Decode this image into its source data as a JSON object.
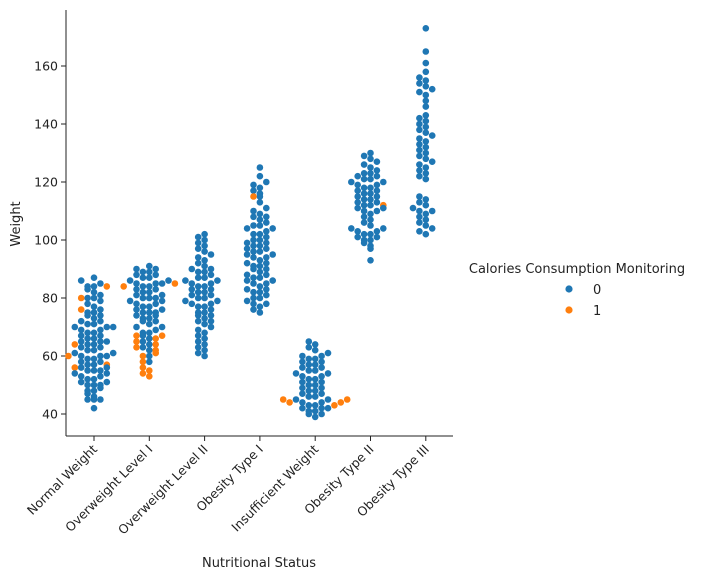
{
  "chart_data": {
    "type": "scatter",
    "subtype": "swarm",
    "xlabel": "Nutritional Status",
    "ylabel": "Weight",
    "categories": [
      "Normal Weight",
      "Overweight Level I",
      "Overweight Level II",
      "Obesity Type I",
      "Insufficient Weight",
      "Obesity Type II",
      "Obesity Type III"
    ],
    "ylim": [
      32,
      180
    ],
    "yticks": [
      40,
      60,
      80,
      100,
      120,
      140,
      160
    ],
    "grid": false,
    "legend": {
      "title": "Calories Consumption Monitoring",
      "placement": "right",
      "entries": [
        {
          "label": "0",
          "color": "#1f77b4"
        },
        {
          "label": "1",
          "color": "#ff7f0e"
        }
      ]
    },
    "series": [
      {
        "hue": "0",
        "color": "#1f77b4",
        "groups": [
          {
            "category": "Normal Weight",
            "y": [
              42,
              45,
              45,
              45,
              46,
              47,
              48,
              48,
              49,
              50,
              50,
              50,
              51,
              51,
              52,
              52,
              53,
              53,
              54,
              54,
              55,
              55,
              55,
              56,
              56,
              57,
              57,
              58,
              58,
              59,
              59,
              60,
              60,
              60,
              61,
              61,
              62,
              62,
              63,
              63,
              64,
              64,
              65,
              65,
              65,
              66,
              66,
              67,
              67,
              68,
              68,
              69,
              69,
              70,
              70,
              70,
              71,
              71,
              72,
              72,
              73,
              74,
              74,
              75,
              75,
              76,
              77,
              78,
              79,
              80,
              80,
              81,
              82,
              83,
              84,
              84,
              85,
              86,
              87
            ]
          },
          {
            "category": "Overweight Level I",
            "y": [
              58,
              60,
              62,
              63,
              64,
              65,
              66,
              67,
              68,
              68,
              69,
              70,
              70,
              71,
              72,
              72,
              73,
              73,
              74,
              74,
              75,
              75,
              75,
              76,
              76,
              77,
              77,
              78,
              78,
              79,
              79,
              80,
              80,
              80,
              81,
              81,
              82,
              82,
              83,
              83,
              84,
              84,
              85,
              85,
              85,
              86,
              86,
              87,
              87,
              88,
              88,
              89,
              89,
              90,
              90,
              91
            ]
          },
          {
            "category": "Overweight Level II",
            "y": [
              60,
              61,
              62,
              63,
              64,
              65,
              66,
              67,
              68,
              69,
              70,
              71,
              72,
              72,
              73,
              74,
              74,
              75,
              75,
              76,
              77,
              77,
              78,
              78,
              79,
              79,
              80,
              80,
              81,
              81,
              82,
              82,
              83,
              83,
              84,
              84,
              85,
              85,
              86,
              86,
              87,
              87,
              88,
              89,
              89,
              90,
              90,
              91,
              92,
              93,
              94,
              95,
              96,
              97,
              98,
              99,
              100,
              101,
              102
            ]
          },
          {
            "category": "Obesity Type I",
            "y": [
              75,
              76,
              77,
              78,
              78,
              79,
              80,
              80,
              81,
              82,
              82,
              83,
              83,
              84,
              85,
              85,
              86,
              86,
              87,
              87,
              88,
              88,
              89,
              90,
              90,
              91,
              91,
              92,
              92,
              93,
              94,
              94,
              95,
              95,
              96,
              96,
              97,
              97,
              98,
              98,
              99,
              99,
              100,
              100,
              101,
              102,
              102,
              103,
              104,
              104,
              105,
              105,
              106,
              107,
              108,
              108,
              109,
              110,
              111,
              113,
              115,
              116,
              117,
              118,
              119,
              120,
              122,
              125
            ]
          },
          {
            "category": "Insufficient Weight",
            "y": [
              39,
              40,
              40,
              41,
              41,
              42,
              42,
              42,
              43,
              43,
              44,
              44,
              45,
              45,
              46,
              46,
              47,
              47,
              48,
              48,
              49,
              49,
              50,
              50,
              51,
              51,
              52,
              52,
              53,
              53,
              54,
              54,
              55,
              55,
              56,
              56,
              57,
              57,
              58,
              58,
              59,
              59,
              60,
              60,
              61,
              62,
              63,
              64,
              65
            ]
          },
          {
            "category": "Obesity Type II",
            "y": [
              93,
              97,
              98,
              99,
              100,
              100,
              101,
              101,
              102,
              102,
              103,
              103,
              104,
              104,
              105,
              106,
              107,
              108,
              109,
              110,
              110,
              111,
              111,
              112,
              112,
              113,
              113,
              114,
              114,
              115,
              115,
              116,
              116,
              117,
              117,
              118,
              118,
              119,
              119,
              120,
              120,
              121,
              121,
              122,
              122,
              123,
              123,
              124,
              125,
              126,
              127,
              128,
              129,
              130
            ]
          },
          {
            "category": "Obesity Type III",
            "y": [
              102,
              103,
              104,
              105,
              106,
              107,
              108,
              109,
              110,
              110,
              111,
              112,
              113,
              114,
              115,
              121,
              122,
              123,
              124,
              125,
              126,
              127,
              128,
              129,
              130,
              131,
              132,
              133,
              134,
              135,
              136,
              137,
              138,
              139,
              140,
              141,
              142,
              143,
              146,
              148,
              150,
              151,
              152,
              153,
              154,
              155,
              156,
              158,
              161,
              165,
              173
            ]
          }
        ]
      },
      {
        "hue": "1",
        "color": "#ff7f0e",
        "groups": [
          {
            "category": "Normal Weight",
            "y": [
              56,
              57,
              60,
              64,
              76,
              80,
              84
            ]
          },
          {
            "category": "Overweight Level I",
            "y": [
              53,
              54,
              55,
              56,
              58,
              60,
              61,
              62,
              63,
              64,
              65,
              66,
              67,
              67,
              84,
              85
            ]
          },
          {
            "category": "Obesity Type I",
            "y": [
              115
            ]
          },
          {
            "category": "Insufficient Weight",
            "y": [
              43,
              44,
              44,
              45,
              45
            ]
          },
          {
            "category": "Obesity Type II",
            "y": [
              112
            ]
          }
        ]
      }
    ]
  }
}
